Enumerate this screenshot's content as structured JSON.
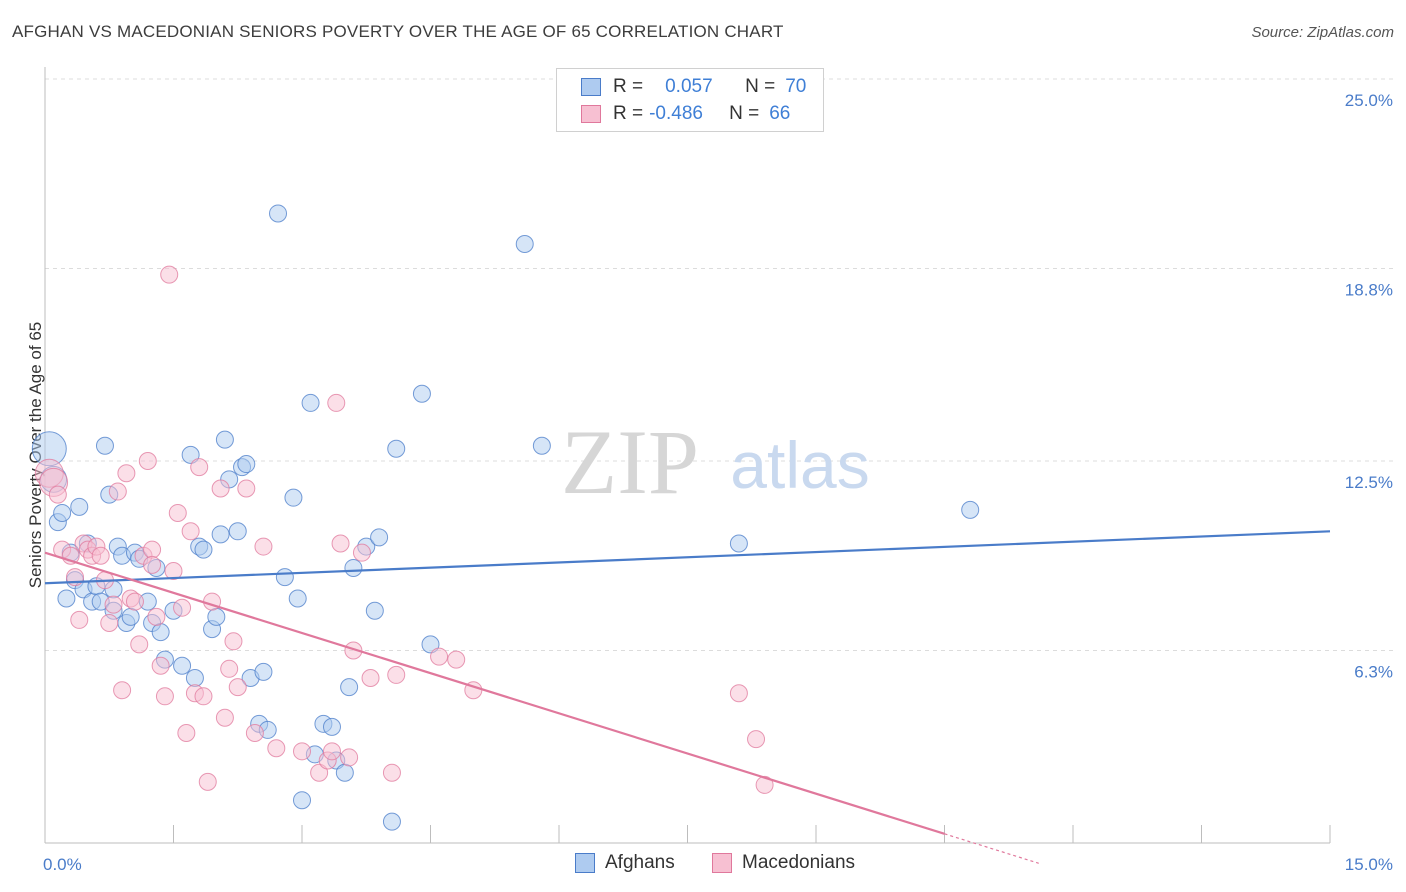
{
  "title": "AFGHAN VS MACEDONIAN SENIORS POVERTY OVER THE AGE OF 65 CORRELATION CHART",
  "source": "Source: ZipAtlas.com",
  "watermark": {
    "zip": "ZIP",
    "atlas": "atlas"
  },
  "legend_top": {
    "rows": [
      {
        "r_label": "R =",
        "r_value": "0.057",
        "n_label": "N =",
        "n_value": "70",
        "color": "#4a7cc9",
        "fill": "#aecbf0"
      },
      {
        "r_label": "R =",
        "r_value": "-0.486",
        "n_label": "N =",
        "n_value": "66",
        "color": "#e0789c",
        "fill": "#f7c0d2"
      }
    ]
  },
  "legend_bottom": {
    "items": [
      {
        "label": "Afghans",
        "color": "#4a7cc9",
        "fill": "#aecbf0"
      },
      {
        "label": "Macedonians",
        "color": "#e0789c",
        "fill": "#f7c0d2"
      }
    ]
  },
  "chart_data": {
    "type": "scatter",
    "title": "AFGHAN VS MACEDONIAN SENIORS POVERTY OVER THE AGE OF 65 CORRELATION CHART",
    "xlabel": "",
    "ylabel": "Seniors Poverty Over the Age of 65",
    "xlim": [
      0,
      15
    ],
    "ylim": [
      0,
      25
    ],
    "x_tick_labels": [
      "0.0%",
      "15.0%"
    ],
    "y_ticks": [
      6.3,
      12.5,
      18.8,
      25.0
    ],
    "y_tick_labels": [
      "6.3%",
      "12.5%",
      "18.8%",
      "25.0%"
    ],
    "grid": "horizontal dashed",
    "legend_position": "top-center",
    "series": [
      {
        "name": "Afghans",
        "color": "#4a7cc9",
        "fill": "#aecbf0",
        "trend": {
          "x": [
            0,
            15
          ],
          "y": [
            8.5,
            10.2
          ]
        },
        "points": [
          [
            0.05,
            12.9
          ],
          [
            0.1,
            11.9
          ],
          [
            0.15,
            10.5
          ],
          [
            0.2,
            10.8
          ],
          [
            0.25,
            8.0
          ],
          [
            0.3,
            9.5
          ],
          [
            0.35,
            8.6
          ],
          [
            0.4,
            11.0
          ],
          [
            0.45,
            8.3
          ],
          [
            0.5,
            9.8
          ],
          [
            0.55,
            7.9
          ],
          [
            0.6,
            8.4
          ],
          [
            0.65,
            7.9
          ],
          [
            0.7,
            13.0
          ],
          [
            0.75,
            11.4
          ],
          [
            0.8,
            8.3
          ],
          [
            0.85,
            9.7
          ],
          [
            0.8,
            7.6
          ],
          [
            0.9,
            9.4
          ],
          [
            0.95,
            7.2
          ],
          [
            1.0,
            7.4
          ],
          [
            1.05,
            9.5
          ],
          [
            1.1,
            9.3
          ],
          [
            1.2,
            7.9
          ],
          [
            1.25,
            7.2
          ],
          [
            1.3,
            9.0
          ],
          [
            1.35,
            6.9
          ],
          [
            1.4,
            6.0
          ],
          [
            1.5,
            7.6
          ],
          [
            1.6,
            5.8
          ],
          [
            1.7,
            12.7
          ],
          [
            1.75,
            5.4
          ],
          [
            1.8,
            9.7
          ],
          [
            1.85,
            9.6
          ],
          [
            1.95,
            7.0
          ],
          [
            2.0,
            7.4
          ],
          [
            2.05,
            10.1
          ],
          [
            2.1,
            13.2
          ],
          [
            2.15,
            11.9
          ],
          [
            2.25,
            10.2
          ],
          [
            2.3,
            12.3
          ],
          [
            2.35,
            12.4
          ],
          [
            2.4,
            5.4
          ],
          [
            2.5,
            3.9
          ],
          [
            2.55,
            5.6
          ],
          [
            2.6,
            3.7
          ],
          [
            2.72,
            20.6
          ],
          [
            2.8,
            8.7
          ],
          [
            2.9,
            11.3
          ],
          [
            2.95,
            8.0
          ],
          [
            3.0,
            1.4
          ],
          [
            3.1,
            14.4
          ],
          [
            3.15,
            2.9
          ],
          [
            3.25,
            3.9
          ],
          [
            3.35,
            3.8
          ],
          [
            3.4,
            2.7
          ],
          [
            3.5,
            2.3
          ],
          [
            3.55,
            5.1
          ],
          [
            3.6,
            9.0
          ],
          [
            3.75,
            9.7
          ],
          [
            3.85,
            7.6
          ],
          [
            3.9,
            10.0
          ],
          [
            4.05,
            0.7
          ],
          [
            4.1,
            12.9
          ],
          [
            4.4,
            14.7
          ],
          [
            4.5,
            6.5
          ],
          [
            5.6,
            19.6
          ],
          [
            5.8,
            13.0
          ],
          [
            8.1,
            9.8
          ],
          [
            10.8,
            10.9
          ]
        ]
      },
      {
        "name": "Macedonians",
        "color": "#e0789c",
        "fill": "#f7c0d2",
        "trend": {
          "x": [
            0,
            10.5
          ],
          "y": [
            9.5,
            0.3
          ]
        },
        "points": [
          [
            0.05,
            12.1
          ],
          [
            0.1,
            11.8
          ],
          [
            0.15,
            11.4
          ],
          [
            0.2,
            9.6
          ],
          [
            0.3,
            9.4
          ],
          [
            0.35,
            8.7
          ],
          [
            0.4,
            7.3
          ],
          [
            0.45,
            9.8
          ],
          [
            0.5,
            9.6
          ],
          [
            0.55,
            9.4
          ],
          [
            0.6,
            9.7
          ],
          [
            0.65,
            9.4
          ],
          [
            0.7,
            8.6
          ],
          [
            0.75,
            7.2
          ],
          [
            0.8,
            7.8
          ],
          [
            0.85,
            11.5
          ],
          [
            0.9,
            5.0
          ],
          [
            0.95,
            12.1
          ],
          [
            1.0,
            8.0
          ],
          [
            1.05,
            7.9
          ],
          [
            1.1,
            6.5
          ],
          [
            1.15,
            9.4
          ],
          [
            1.2,
            12.5
          ],
          [
            1.25,
            9.6
          ],
          [
            1.3,
            7.4
          ],
          [
            1.35,
            5.8
          ],
          [
            1.4,
            4.8
          ],
          [
            1.45,
            18.6
          ],
          [
            1.5,
            8.9
          ],
          [
            1.55,
            10.8
          ],
          [
            1.6,
            7.7
          ],
          [
            1.65,
            3.6
          ],
          [
            1.7,
            10.2
          ],
          [
            1.75,
            4.9
          ],
          [
            1.8,
            12.3
          ],
          [
            1.85,
            4.8
          ],
          [
            1.9,
            2.0
          ],
          [
            1.95,
            7.9
          ],
          [
            2.05,
            11.6
          ],
          [
            2.1,
            4.1
          ],
          [
            2.15,
            5.7
          ],
          [
            2.2,
            6.6
          ],
          [
            2.25,
            5.1
          ],
          [
            2.35,
            11.6
          ],
          [
            2.45,
            3.6
          ],
          [
            2.55,
            9.7
          ],
          [
            2.7,
            3.1
          ],
          [
            3.0,
            3.0
          ],
          [
            3.2,
            2.3
          ],
          [
            3.3,
            2.7
          ],
          [
            3.35,
            3.0
          ],
          [
            3.4,
            14.4
          ],
          [
            3.45,
            9.8
          ],
          [
            3.55,
            2.8
          ],
          [
            3.6,
            6.3
          ],
          [
            3.7,
            9.5
          ],
          [
            3.8,
            5.4
          ],
          [
            4.05,
            2.3
          ],
          [
            4.1,
            5.5
          ],
          [
            4.8,
            6.0
          ],
          [
            5.0,
            5.0
          ],
          [
            8.1,
            4.9
          ],
          [
            8.3,
            3.4
          ],
          [
            8.4,
            1.9
          ],
          [
            4.6,
            6.1
          ],
          [
            1.25,
            9.1
          ]
        ]
      }
    ]
  }
}
